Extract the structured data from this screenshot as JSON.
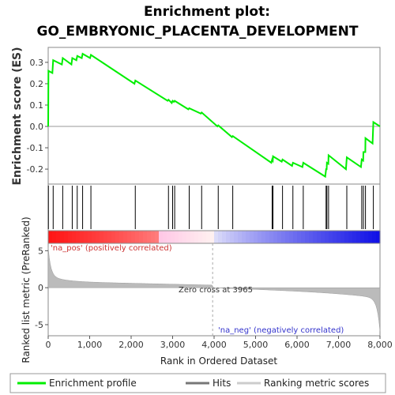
{
  "chart_data": {
    "type": "line",
    "title_line1": "Enrichment plot:",
    "title_line2": "GO_EMBRYONIC_PLACENTA_DEVELOPMENT",
    "ylabel": "Enrichment score (ES)",
    "xlabel": "Rank in Ordered Dataset",
    "ylabel_bottom": "Ranked list metric (PreRanked)",
    "xlim": [
      0,
      8000
    ],
    "ylim_es": [
      -0.27,
      0.37
    ],
    "ylim_metric": [
      -6.5,
      6
    ],
    "x_ticks": [
      "0",
      "1,000",
      "2,000",
      "3,000",
      "4,000",
      "5,000",
      "6,000",
      "7,000",
      "8,000"
    ],
    "x_tick_values": [
      0,
      1000,
      2000,
      3000,
      4000,
      5000,
      6000,
      7000,
      8000
    ],
    "es_ticks": [
      "-0.2",
      "-0.1",
      "0.0",
      "0.1",
      "0.2",
      "0.3"
    ],
    "es_tick_values": [
      -0.2,
      -0.1,
      0.0,
      0.1,
      0.2,
      0.3
    ],
    "metric_ticks": [
      "-5",
      "0",
      "5"
    ],
    "metric_tick_values": [
      -5,
      0,
      5
    ],
    "hits": [
      5,
      120,
      350,
      580,
      700,
      830,
      1030,
      2100,
      2900,
      3000,
      3050,
      3400,
      3700,
      4100,
      4450,
      5400,
      5420,
      5650,
      5900,
      6150,
      6700,
      6720,
      6760,
      7200,
      7560,
      7600,
      7650,
      7840
    ],
    "es_profile": {
      "x": [
        0,
        5,
        100,
        120,
        330,
        350,
        560,
        580,
        680,
        700,
        810,
        830,
        1010,
        1030,
        2080,
        2100,
        2880,
        2900,
        2980,
        3000,
        3030,
        3050,
        3380,
        3400,
        3680,
        3700,
        4080,
        4100,
        4430,
        4450,
        5380,
        5400,
        5415,
        5420,
        5630,
        5650,
        5880,
        5900,
        6130,
        6150,
        6680,
        6700,
        6715,
        6720,
        6755,
        6760,
        7180,
        7200,
        7540,
        7560,
        7595,
        7600,
        7645,
        7650,
        7820,
        7840,
        8000
      ],
      "y": [
        0.0,
        0.26,
        0.25,
        0.31,
        0.29,
        0.32,
        0.29,
        0.32,
        0.31,
        0.33,
        0.32,
        0.34,
        0.32,
        0.335,
        0.2,
        0.215,
        0.12,
        0.125,
        0.11,
        0.12,
        0.115,
        0.12,
        0.08,
        0.085,
        0.06,
        0.065,
        0.0,
        0.005,
        -0.05,
        -0.045,
        -0.17,
        -0.155,
        -0.16,
        -0.14,
        -0.165,
        -0.155,
        -0.185,
        -0.17,
        -0.19,
        -0.17,
        -0.235,
        -0.2,
        -0.2,
        -0.17,
        -0.175,
        -0.135,
        -0.2,
        -0.145,
        -0.19,
        -0.155,
        -0.16,
        -0.12,
        -0.12,
        -0.055,
        -0.08,
        0.02,
        0.0
      ]
    },
    "zero_cross": 3965,
    "zero_cross_label": "Zero cross at 3965",
    "pos_label": "'na_pos' (positively correlated)",
    "neg_label": "'na_neg' (negatively correlated)",
    "legend": {
      "enrichment": "Enrichment profile",
      "hits": "Hits",
      "metric": "Ranking metric scores"
    },
    "colors": {
      "es_line": "#00ee00",
      "hit": "#000000",
      "metric_fill": "#bbbbbb",
      "pos_deep": "#ee0000",
      "neg_deep": "#0000dd"
    }
  }
}
